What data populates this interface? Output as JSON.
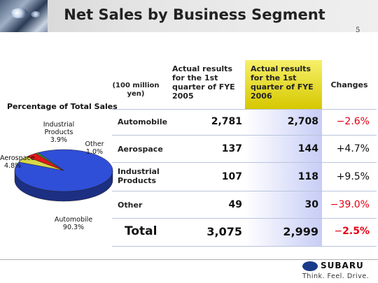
{
  "title": "Net Sales by Business Segment",
  "slide_number": "5",
  "table": {
    "unit_label": "(100 million yen)",
    "col_prev": "Actual results for the 1st quarter of FYE 2005",
    "col_curr": "Actual results for the 1st quarter of FYE 2006",
    "col_changes": "Changes",
    "rows": [
      {
        "label": "Automobile",
        "prev": "2,781",
        "curr": "2,708",
        "change": "−2.6%"
      },
      {
        "label": "Aerospace",
        "prev": "137",
        "curr": "144",
        "change": "+4.7%"
      },
      {
        "label": "Industrial Products",
        "prev": "107",
        "curr": "118",
        "change": "+9.5%"
      },
      {
        "label": "Other",
        "prev": "49",
        "curr": "30",
        "change": "−39.0%"
      }
    ],
    "total": {
      "label": "Total",
      "prev": "3,075",
      "curr": "2,999",
      "change_sign": "−",
      "change_value": "2.5%"
    }
  },
  "chart_data": {
    "type": "pie",
    "title": "Percentage of Total Sales",
    "slices": [
      {
        "name": "Automobile",
        "label": "90.3%",
        "value": 90.3,
        "color": "#2f4fd8"
      },
      {
        "name": "Aerospace",
        "label": "4.8%",
        "value": 4.8,
        "color": "#d8d84a"
      },
      {
        "name": "Industrial Products",
        "label": "3.9%",
        "value": 3.9,
        "color": "#e01818"
      },
      {
        "name": "Other",
        "label": "1.0%",
        "value": 1.0,
        "color": "#3c8a3c"
      }
    ]
  },
  "brand": {
    "name": "SUBARU",
    "slogan": "Think. Feel. Drive."
  }
}
